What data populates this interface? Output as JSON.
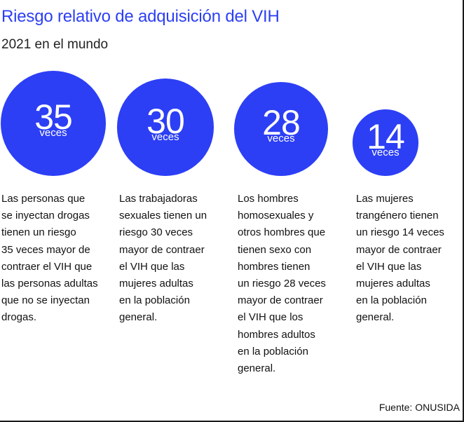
{
  "title": "Riesgo relativo de adquisición del VIH",
  "subtitle": "2021 en el mundo",
  "source": "Fuente: ONUSIDA",
  "colors": {
    "accent": "#2c3ff5",
    "text": "#111111"
  },
  "chart_data": {
    "type": "bubble",
    "title": "Riesgo relativo de adquisición del VIH",
    "subtitle": "2021 en el mundo",
    "unit": "veces",
    "values": [
      35,
      30,
      28,
      14
    ],
    "items": [
      {
        "value": "35",
        "unit": "veces",
        "description_lines": [
          "Las personas que",
          "se inyectan drogas",
          "tienen un riesgo",
          "35 veces mayor de",
          "contraer el VIH que",
          "las personas adultas",
          "que no se inyectan",
          "drogas."
        ]
      },
      {
        "value": "30",
        "unit": "veces",
        "description_lines": [
          "Las trabajadoras",
          "sexuales tienen un",
          "riesgo 30 veces",
          "mayor de contraer",
          "el VIH que las",
          "mujeres adultas",
          "en la población",
          "general."
        ]
      },
      {
        "value": "28",
        "unit": "veces",
        "description_lines": [
          "Los hombres",
          "homosexuales y",
          "otros hombres que",
          "tienen sexo con",
          "hombres tienen",
          "un riesgo 28 veces",
          "mayor de contraer",
          "el VIH que los",
          "hombres adultos",
          "en la población",
          "general."
        ]
      },
      {
        "value": "14",
        "unit": "veces",
        "description_lines": [
          "Las mujeres",
          "trangénero tienen",
          "un riesgo 14 veces",
          "mayor de contraer",
          "el VIH que las",
          "mujeres adultas",
          "en la población",
          "general."
        ]
      }
    ]
  }
}
